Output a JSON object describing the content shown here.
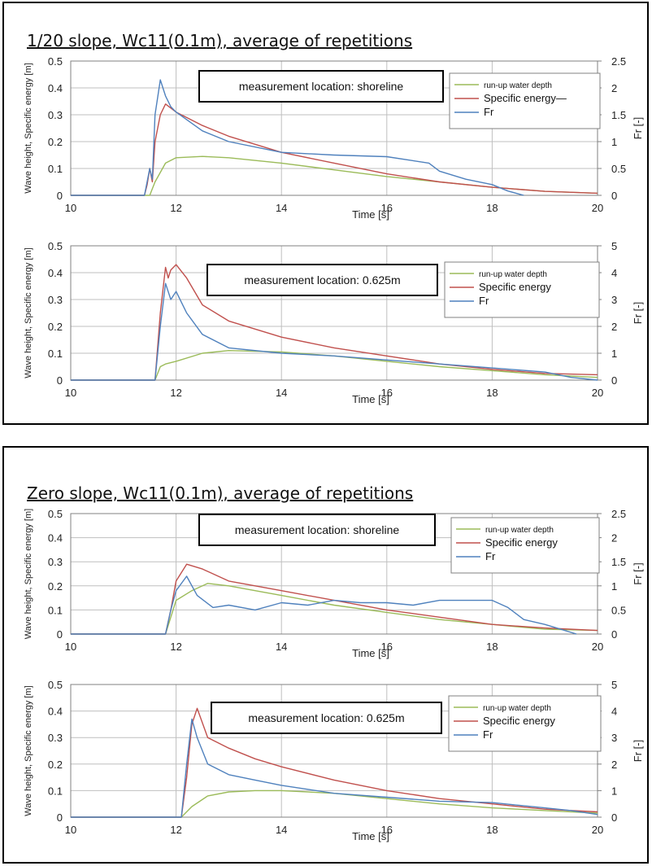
{
  "page": {
    "group_titles": [
      "1/20 slope, Wc11(0.1m), average of repetitions",
      "Zero slope, Wc11(0.1m), average of repetitions"
    ]
  },
  "colors": {
    "depth": "#9bbb59",
    "energy": "#c0504d",
    "fr": "#4f81bd",
    "grid": "#bfbfbf",
    "axis": "#808080"
  },
  "chart_data": [
    {
      "type": "line",
      "group": "1/20 slope, Wc11(0.1m), average of repetitions",
      "annotation": "measurement location: shoreline",
      "xlabel": "Time [s]",
      "ylabel": "Wave height, Specific energy [m]",
      "y2label": "Fr [-]",
      "xlim": [
        10,
        20
      ],
      "ylim": [
        0,
        0.5
      ],
      "y2lim": [
        0,
        2.5
      ],
      "xticks": [
        "10",
        "12",
        "14",
        "16",
        "18",
        "20"
      ],
      "yticks": [
        "0",
        "0.1",
        "0.2",
        "0.3",
        "0.4",
        "0.5"
      ],
      "y2ticks": [
        "0",
        "0.5",
        "1",
        "1.5",
        "2",
        "2.5"
      ],
      "legend": [
        "run-up water depth",
        "Specific energy—",
        "Fr"
      ],
      "series": [
        {
          "name": "run-up water depth",
          "axis": "left",
          "x": [
            10,
            11.5,
            11.6,
            11.8,
            12.0,
            12.5,
            13.0,
            14.0,
            15.0,
            16.0,
            17.0,
            18.0,
            19.0,
            20.0
          ],
          "y": [
            0,
            0,
            0.05,
            0.12,
            0.14,
            0.145,
            0.14,
            0.12,
            0.095,
            0.07,
            0.05,
            0.03,
            0.015,
            0.008
          ]
        },
        {
          "name": "Specific energy",
          "axis": "left",
          "x": [
            10,
            11.4,
            11.45,
            11.5,
            11.55,
            11.6,
            11.7,
            11.8,
            12.0,
            12.5,
            13.0,
            14.0,
            15.0,
            16.0,
            17.0,
            18.0,
            19.0,
            20.0
          ],
          "y": [
            0,
            0,
            0.04,
            0.1,
            0.05,
            0.2,
            0.3,
            0.34,
            0.31,
            0.26,
            0.22,
            0.16,
            0.12,
            0.08,
            0.05,
            0.03,
            0.015,
            0.008
          ]
        },
        {
          "name": "Fr",
          "axis": "right",
          "x": [
            10,
            11.4,
            11.5,
            11.55,
            11.6,
            11.7,
            11.8,
            11.9,
            12.0,
            12.5,
            13.0,
            14.0,
            15.0,
            16.0,
            16.8,
            17.0,
            17.5,
            18.0,
            18.3,
            18.6
          ],
          "y": [
            0,
            0,
            0.5,
            0.3,
            1.5,
            2.15,
            1.85,
            1.65,
            1.55,
            1.2,
            1.0,
            0.8,
            0.75,
            0.72,
            0.6,
            0.45,
            0.3,
            0.2,
            0.08,
            0
          ]
        }
      ]
    },
    {
      "type": "line",
      "group": "1/20 slope, Wc11(0.1m), average of repetitions",
      "annotation": "measurement location: 0.625m",
      "xlabel": "Time [s]",
      "ylabel": "Wave height, Specific energy [m]",
      "y2label": "Fr [-]",
      "xlim": [
        10,
        20
      ],
      "ylim": [
        0,
        0.5
      ],
      "y2lim": [
        0,
        5
      ],
      "xticks": [
        "10",
        "12",
        "14",
        "16",
        "18",
        "20"
      ],
      "yticks": [
        "0",
        "0.1",
        "0.2",
        "0.3",
        "0.4",
        "0.5"
      ],
      "y2ticks": [
        "0",
        "1",
        "2",
        "3",
        "4",
        "5"
      ],
      "legend": [
        "run-up water depth",
        "Specific energy",
        "Fr"
      ],
      "series": [
        {
          "name": "run-up water depth",
          "axis": "left",
          "x": [
            10,
            11.6,
            11.7,
            11.8,
            12.0,
            12.5,
            13.0,
            14.0,
            15.0,
            16.0,
            17.0,
            18.0,
            19.0,
            20.0
          ],
          "y": [
            0,
            0,
            0.05,
            0.06,
            0.07,
            0.1,
            0.11,
            0.105,
            0.09,
            0.07,
            0.05,
            0.035,
            0.02,
            0.01
          ]
        },
        {
          "name": "Specific energy",
          "axis": "left",
          "x": [
            10,
            11.6,
            11.7,
            11.8,
            11.85,
            11.9,
            12.0,
            12.2,
            12.5,
            13.0,
            14.0,
            15.0,
            16.0,
            17.0,
            18.0,
            19.0,
            20.0
          ],
          "y": [
            0,
            0,
            0.25,
            0.42,
            0.38,
            0.41,
            0.43,
            0.38,
            0.28,
            0.22,
            0.16,
            0.12,
            0.09,
            0.06,
            0.04,
            0.025,
            0.02
          ]
        },
        {
          "name": "Fr",
          "axis": "right",
          "x": [
            10,
            11.6,
            11.7,
            11.8,
            11.9,
            12.0,
            12.2,
            12.5,
            13.0,
            14.0,
            15.0,
            16.0,
            17.0,
            18.0,
            19.0,
            19.5,
            20.0
          ],
          "y": [
            0,
            0,
            2.0,
            3.6,
            3.0,
            3.3,
            2.5,
            1.7,
            1.2,
            1.0,
            0.9,
            0.75,
            0.6,
            0.45,
            0.3,
            0.1,
            0
          ]
        }
      ]
    },
    {
      "type": "line",
      "group": "Zero slope, Wc11(0.1m), average of repetitions",
      "annotation": "measurement location: shoreline",
      "xlabel": "Time [s]",
      "ylabel": "Wave height, Specific energy [m]",
      "y2label": "Fr [-]",
      "xlim": [
        10,
        20
      ],
      "ylim": [
        0,
        0.5
      ],
      "y2lim": [
        0,
        2.5
      ],
      "xticks": [
        "10",
        "12",
        "14",
        "16",
        "18",
        "20"
      ],
      "yticks": [
        "0",
        "0.1",
        "0.2",
        "0.3",
        "0.4",
        "0.5"
      ],
      "y2ticks": [
        "0",
        "0.5",
        "1",
        "1.5",
        "2",
        "2.5"
      ],
      "legend": [
        "run-up water depth",
        "Specific energy",
        "Fr"
      ],
      "series": [
        {
          "name": "run-up water depth",
          "axis": "left",
          "x": [
            10,
            11.8,
            12.0,
            12.3,
            12.6,
            13.0,
            14.0,
            15.0,
            16.0,
            17.0,
            18.0,
            19.0,
            20.0
          ],
          "y": [
            0,
            0,
            0.14,
            0.18,
            0.21,
            0.2,
            0.16,
            0.12,
            0.09,
            0.06,
            0.04,
            0.02,
            0.015
          ]
        },
        {
          "name": "Specific energy",
          "axis": "left",
          "x": [
            10,
            11.8,
            11.9,
            12.0,
            12.2,
            12.5,
            13.0,
            14.0,
            15.0,
            16.0,
            17.0,
            18.0,
            19.0,
            20.0
          ],
          "y": [
            0,
            0,
            0.1,
            0.22,
            0.29,
            0.27,
            0.22,
            0.18,
            0.14,
            0.1,
            0.07,
            0.04,
            0.025,
            0.015
          ]
        },
        {
          "name": "Fr",
          "axis": "right",
          "x": [
            10,
            11.8,
            11.9,
            12.0,
            12.2,
            12.4,
            12.7,
            13.0,
            13.5,
            14.0,
            14.5,
            15.0,
            15.5,
            16.0,
            16.5,
            17.0,
            17.5,
            18.0,
            18.3,
            18.6,
            19.0,
            19.3,
            19.6
          ],
          "y": [
            0,
            0,
            0.5,
            0.9,
            1.2,
            0.8,
            0.55,
            0.6,
            0.5,
            0.65,
            0.6,
            0.7,
            0.65,
            0.65,
            0.6,
            0.7,
            0.7,
            0.7,
            0.55,
            0.3,
            0.2,
            0.1,
            0
          ]
        }
      ]
    },
    {
      "type": "line",
      "group": "Zero slope, Wc11(0.1m), average of repetitions",
      "annotation": "measurement location: 0.625m",
      "xlabel": "Time [s]",
      "ylabel": "Wave height, Specific energy [m]",
      "y2label": "Fr [-]",
      "xlim": [
        10,
        20
      ],
      "ylim": [
        0,
        0.5
      ],
      "y2lim": [
        0,
        5
      ],
      "xticks": [
        "10",
        "12",
        "14",
        "16",
        "18",
        "20"
      ],
      "yticks": [
        "0",
        "0.1",
        "0.2",
        "0.3",
        "0.4",
        "0.5"
      ],
      "y2ticks": [
        "0",
        "1",
        "2",
        "3",
        "4",
        "5"
      ],
      "legend": [
        "run-up water depth",
        "Specific energy",
        "Fr"
      ],
      "series": [
        {
          "name": "run-up water depth",
          "axis": "left",
          "x": [
            10,
            12.1,
            12.3,
            12.6,
            13.0,
            13.5,
            14.0,
            15.0,
            16.0,
            17.0,
            18.0,
            19.0,
            20.0
          ],
          "y": [
            0,
            0,
            0.04,
            0.08,
            0.095,
            0.1,
            0.1,
            0.09,
            0.07,
            0.05,
            0.035,
            0.025,
            0.015
          ]
        },
        {
          "name": "Specific energy",
          "axis": "left",
          "x": [
            10,
            12.1,
            12.2,
            12.3,
            12.4,
            12.6,
            13.0,
            13.5,
            14.0,
            15.0,
            16.0,
            17.0,
            18.0,
            19.0,
            20.0
          ],
          "y": [
            0,
            0,
            0.15,
            0.35,
            0.41,
            0.3,
            0.26,
            0.22,
            0.19,
            0.14,
            0.1,
            0.07,
            0.05,
            0.03,
            0.02
          ]
        },
        {
          "name": "Fr",
          "axis": "right",
          "x": [
            10,
            12.1,
            12.2,
            12.3,
            12.4,
            12.6,
            13.0,
            13.5,
            14.0,
            15.0,
            16.0,
            17.0,
            18.0,
            19.0,
            19.5,
            20.0
          ],
          "y": [
            0,
            0,
            2.0,
            3.7,
            3.0,
            2.0,
            1.6,
            1.4,
            1.2,
            0.9,
            0.75,
            0.6,
            0.55,
            0.35,
            0.25,
            0.1
          ]
        }
      ]
    }
  ]
}
